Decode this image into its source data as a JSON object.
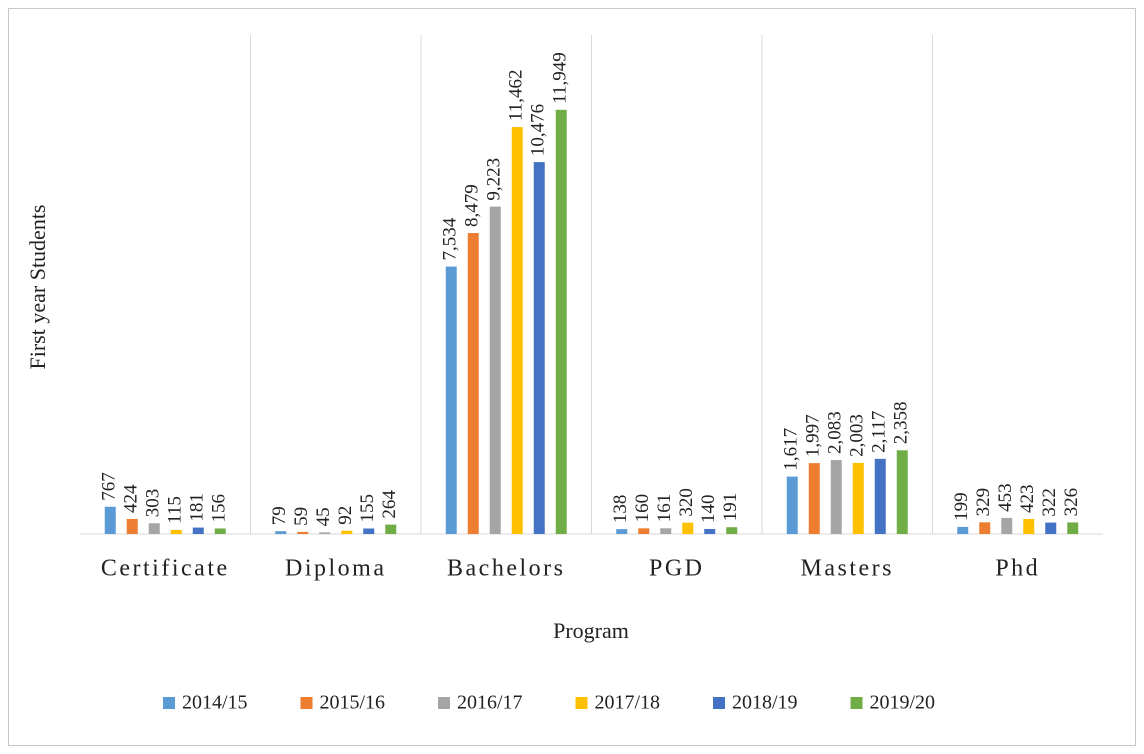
{
  "chart_data": {
    "type": "bar",
    "x_label": "Program",
    "y_label": "First year Students",
    "categories": [
      "Certificate",
      "Diploma",
      "Bachelors",
      "PGD",
      "Masters",
      "Phd"
    ],
    "series": [
      {
        "name": "2014/15",
        "color": "#5b9bd5",
        "values": [
          767,
          79,
          7534,
          138,
          1617,
          199
        ],
        "value_labels": [
          "767",
          "79",
          "7,534",
          "138",
          "1,617",
          "199"
        ]
      },
      {
        "name": "2015/16",
        "color": "#ed7d31",
        "values": [
          424,
          59,
          8479,
          160,
          1997,
          329
        ],
        "value_labels": [
          "424",
          "59",
          "8,479",
          "160",
          "1,997",
          "329"
        ]
      },
      {
        "name": "2016/17",
        "color": "#a5a5a5",
        "values": [
          303,
          45,
          9223,
          161,
          2083,
          453
        ],
        "value_labels": [
          "303",
          "45",
          "9,223",
          "161",
          "2,083",
          "453"
        ]
      },
      {
        "name": "2017/18",
        "color": "#ffc000",
        "values": [
          115,
          92,
          11462,
          320,
          2003,
          423
        ],
        "value_labels": [
          "115",
          "92",
          "11,462",
          "320",
          "2,003",
          "423"
        ]
      },
      {
        "name": "2018/19",
        "color": "#4472c4",
        "values": [
          181,
          155,
          10476,
          140,
          2117,
          322
        ],
        "value_labels": [
          "181",
          "155",
          "10,476",
          "140",
          "2,117",
          "322"
        ]
      },
      {
        "name": "2019/20",
        "color": "#70ad47",
        "values": [
          156,
          264,
          11949,
          191,
          2358,
          326
        ],
        "value_labels": [
          "156",
          "264",
          "11,949",
          "191",
          "2,358",
          "326"
        ]
      }
    ],
    "ylim": [
      0,
      12000
    ],
    "legend": "bottom"
  }
}
